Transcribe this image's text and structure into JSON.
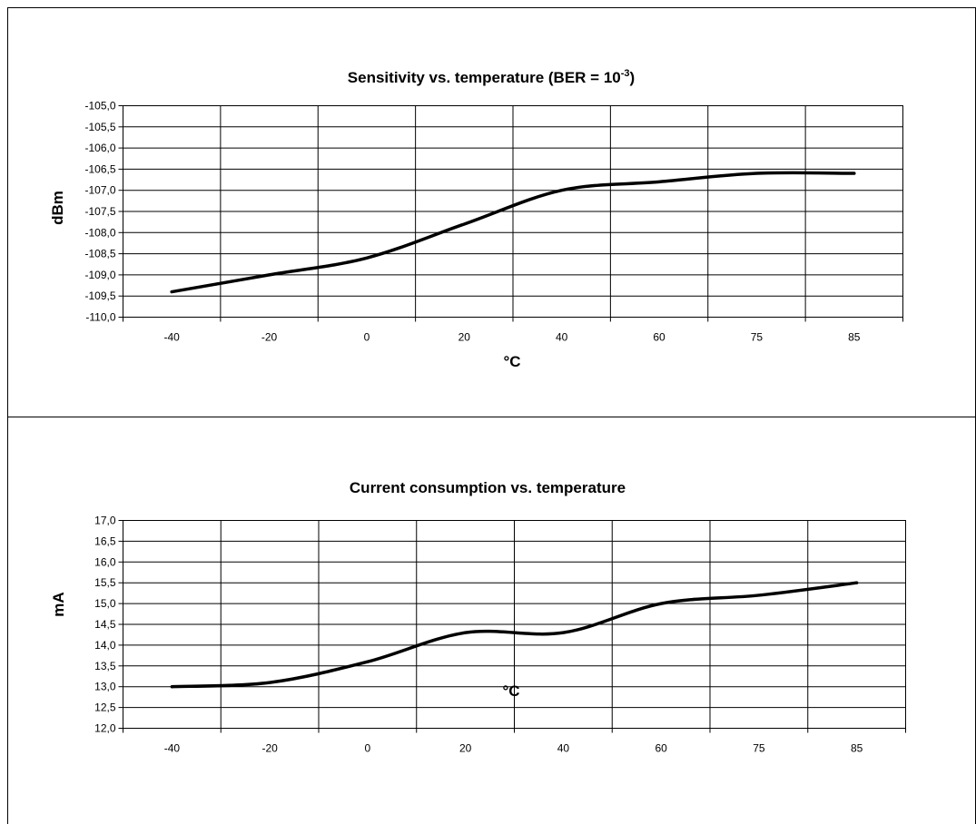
{
  "chart_data": [
    {
      "type": "line",
      "title": "Sensitivity vs. temperature (BER = 10",
      "title_superscript": "-3",
      "title_suffix": ")",
      "xlabel": "°C",
      "ylabel": "dBm",
      "categories": [
        "-40",
        "-20",
        "0",
        "20",
        "40",
        "60",
        "75",
        "85"
      ],
      "ylim": [
        -110.0,
        -105.0
      ],
      "ystep": 0.5,
      "yticks": [
        "-105,0",
        "-105,5",
        "-106,0",
        "-106,5",
        "-107,0",
        "-107,5",
        "-108,0",
        "-108,5",
        "-109,0",
        "-109,5",
        "-110,0"
      ],
      "grid": true,
      "series": [
        {
          "values": [
            -109.4,
            -109.0,
            -108.6,
            -107.8,
            -107.0,
            -106.8,
            -106.6,
            -106.6
          ]
        }
      ]
    },
    {
      "type": "line",
      "title": "Current consumption vs. temperature",
      "title_superscript": "",
      "title_suffix": "",
      "xlabel": "°C",
      "ylabel": "mA",
      "categories": [
        "-40",
        "-20",
        "0",
        "20",
        "40",
        "60",
        "75",
        "85"
      ],
      "ylim": [
        12.0,
        17.0
      ],
      "ystep": 0.5,
      "yticks": [
        "17,0",
        "16,5",
        "16,0",
        "15,5",
        "15,0",
        "14,5",
        "14,0",
        "13,5",
        "13,0",
        "12,5",
        "12,0"
      ],
      "grid": true,
      "series": [
        {
          "values": [
            13.0,
            13.1,
            13.6,
            14.3,
            14.3,
            15.0,
            15.2,
            15.5
          ]
        }
      ]
    }
  ]
}
